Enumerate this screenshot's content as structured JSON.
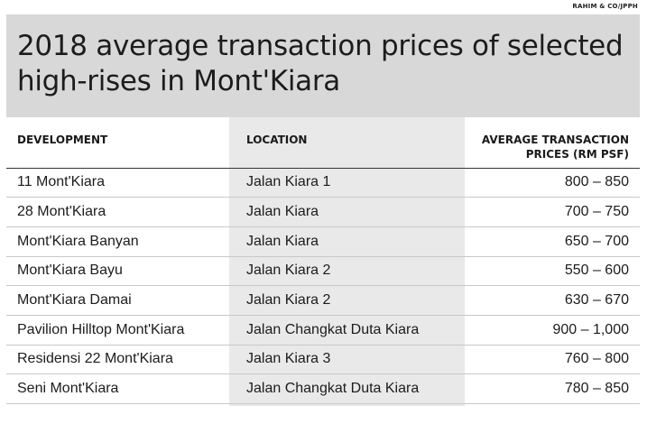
{
  "source": "RAHIM & CO/JPPH",
  "chart_data": {
    "type": "table",
    "title_line1": "2018 average transaction prices of selected",
    "title_line2": "high-rises in Mont'Kiara",
    "columns": [
      "DEVELOPMENT",
      "LOCATION",
      "AVERAGE TRANSACTION PRICES (RM PSF)"
    ],
    "column3_line1": "AVERAGE TRANSACTION",
    "column3_line2": "PRICES (RM PSF)",
    "rows": [
      {
        "development": "11 Mont'Kiara",
        "location": "Jalan Kiara 1",
        "price": "800 – 850"
      },
      {
        "development": "28 Mont'Kiara",
        "location": "Jalan Kiara",
        "price": "700 – 750"
      },
      {
        "development": "Mont'Kiara Banyan",
        "location": "Jalan Kiara",
        "price": "650 – 700"
      },
      {
        "development": "Mont'Kiara Bayu",
        "location": "Jalan Kiara 2",
        "price": "550 – 600"
      },
      {
        "development": "Mont'Kiara Damai",
        "location": "Jalan Kiara 2",
        "price": "630 – 670"
      },
      {
        "development": "Pavilion Hilltop Mont'Kiara",
        "location": "Jalan Changkat Duta Kiara",
        "price": "900 – 1,000"
      },
      {
        "development": "Residensi 22 Mont'Kiara",
        "location": "Jalan Kiara 3",
        "price": "760 – 800"
      },
      {
        "development": "Seni Mont'Kiara",
        "location": "Jalan Changkat Duta Kiara",
        "price": "780 – 850"
      }
    ]
  },
  "colors": {
    "title_bg": "#d8d8d8",
    "location_band": "#e9e9e9",
    "text": "#1c1c1c"
  }
}
